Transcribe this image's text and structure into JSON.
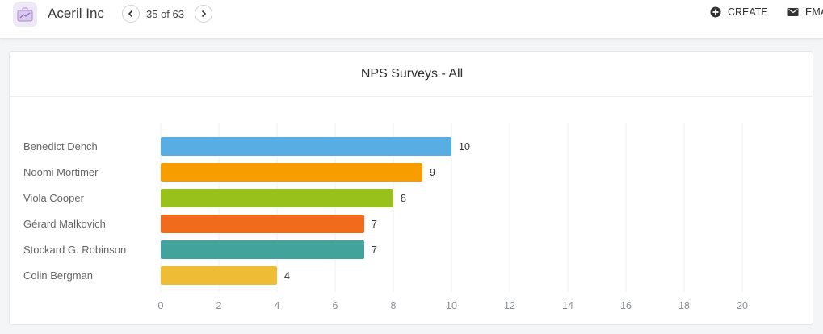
{
  "header": {
    "company_name": "Aceril Inc",
    "record_position": "35 of 63",
    "app_icon": "briefcase-chart-icon",
    "actions": [
      {
        "label": "CREATE",
        "icon": "plus-circle-icon"
      },
      {
        "label": "EMAIL",
        "icon": "envelope-icon"
      }
    ]
  },
  "card": {
    "title": "NPS Surveys - All"
  },
  "chart_data": {
    "type": "bar",
    "orientation": "horizontal",
    "title": "NPS Surveys - All",
    "categories": [
      "Benedict Dench",
      "Noomi Mortimer",
      "Viola Cooper",
      "Gérard Malkovich",
      "Stockard G. Robinson",
      "Colin Bergman"
    ],
    "values": [
      10,
      9,
      8,
      7,
      7,
      4
    ],
    "colors": [
      "#58aee3",
      "#f79d00",
      "#99c11c",
      "#f06c1c",
      "#41a39c",
      "#efbc35"
    ],
    "xlim": [
      0,
      20
    ],
    "xticks": [
      0,
      2,
      4,
      6,
      8,
      10,
      12,
      14,
      16,
      18,
      20
    ],
    "grid": true,
    "data_labels": true
  }
}
